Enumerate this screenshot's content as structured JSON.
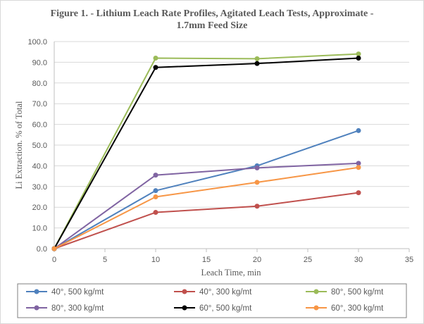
{
  "chart_data": {
    "type": "line",
    "title_line1": "Figure 1. - Lithium Leach Rate Profiles, Agitated Leach Tests, Approximate -",
    "title_line2": "1.7mm Feed Size",
    "xlabel": "Leach Time, min",
    "ylabel": "Li Extraction.  % of Total",
    "xlim": [
      0,
      35
    ],
    "ylim": [
      0,
      100
    ],
    "x_ticks": [
      "0",
      "5",
      "10",
      "15",
      "20",
      "25",
      "30",
      "35"
    ],
    "y_ticks": [
      "0.0",
      "10.0",
      "20.0",
      "30.0",
      "40.0",
      "50.0",
      "60.0",
      "70.0",
      "80.0",
      "90.0",
      "100.0"
    ],
    "grid": "horizontal",
    "legend_position": "bottom",
    "series": [
      {
        "name": "40°, 500 kg/mt",
        "color": "#4f81bd",
        "x": [
          0,
          10,
          20,
          30
        ],
        "values": [
          0,
          28.0,
          40.0,
          57.0
        ]
      },
      {
        "name": "40°, 300 kg/mt",
        "color": "#c0504d",
        "x": [
          0,
          10,
          20,
          30
        ],
        "values": [
          0,
          17.5,
          20.5,
          27.0
        ]
      },
      {
        "name": "80°, 500 kg/mt",
        "color": "#9bbb59",
        "x": [
          0,
          10,
          20,
          30
        ],
        "values": [
          0,
          92.0,
          91.7,
          94.0
        ]
      },
      {
        "name": "80°, 300 kg/mt",
        "color": "#8064a2",
        "x": [
          0,
          10,
          20,
          30
        ],
        "values": [
          0,
          35.5,
          39.0,
          41.2
        ]
      },
      {
        "name": "60°, 500 kg/mt",
        "color": "#000000",
        "x": [
          0,
          10,
          20,
          30
        ],
        "values": [
          0,
          87.5,
          89.4,
          92.0
        ]
      },
      {
        "name": "60°, 300 kg/mt",
        "color": "#f79646",
        "x": [
          0,
          10,
          20,
          30
        ],
        "values": [
          0,
          25.0,
          32.0,
          39.2
        ]
      }
    ]
  }
}
